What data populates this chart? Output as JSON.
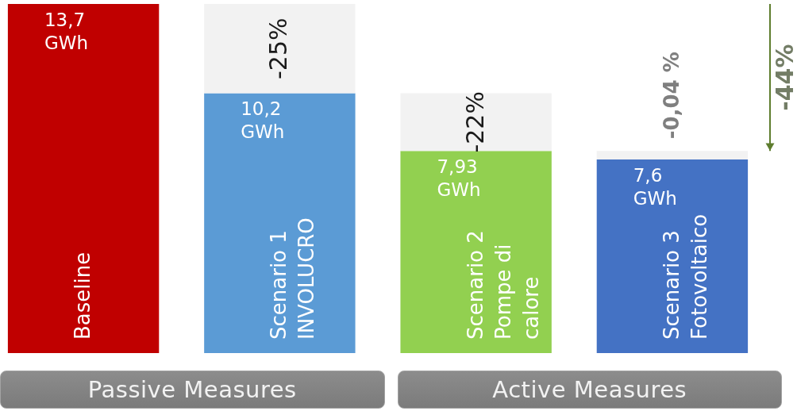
{
  "chart_data": {
    "type": "bar",
    "stacked": true,
    "categories": [
      "Baseline",
      "Scenario 1\nINVOLUCRO",
      "Scenario 2\nPompe di\ncalore",
      "Scenario 3\nFotovoltaico"
    ],
    "series": [
      {
        "colors": [
          "#c00000",
          "#5b9bd5",
          "#92d050",
          "#4472c4"
        ],
        "values": [
          13.7,
          10.2,
          7.93,
          7.6
        ],
        "value_labels": [
          "13,7\nGWh",
          "10,2\nGWh",
          "7,93\nGWh",
          "7,6\nGWh"
        ]
      },
      {
        "color": "#f2f2f2",
        "values": [
          null,
          3.5,
          2.27,
          0.33
        ]
      }
    ],
    "annotations": [
      "-44%",
      {
        "text": "-25%",
        "x": "Scenario 1\nINVOLUCRO",
        "y": 13.7
      },
      {
        "text": "-22%",
        "x": "Scenario 2\nPompe di\ncalore",
        "y": 10.2
      },
      {
        "text": "-0,04 %",
        "x": "Scenario 3\nFotovoltaico",
        "y": 7.93
      },
      "Passive Measures",
      "Active Measures"
    ]
  }
}
